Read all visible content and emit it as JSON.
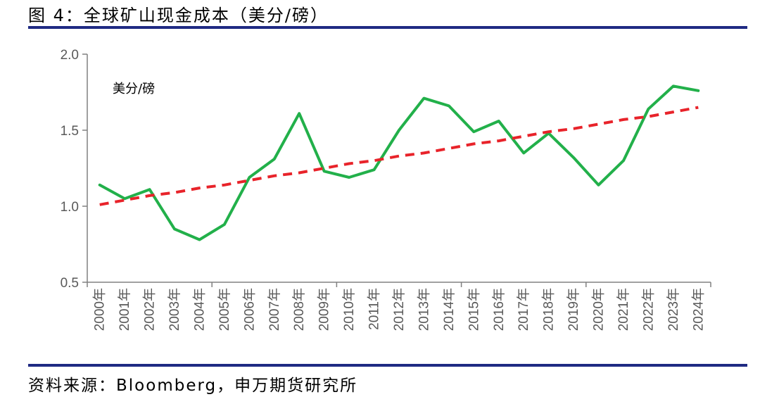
{
  "figure": {
    "title": "图 4：全球矿山现金成本（美分/磅）",
    "source": "资料来源：Bloomberg，申万期货研究所"
  },
  "colors": {
    "rule": "#1f2a83",
    "series": "#22b04a",
    "trend": "#e8232a",
    "axis": "#808080",
    "tick_label": "#595959"
  },
  "chart_data": {
    "type": "line",
    "unit_label": "美分/磅",
    "categories": [
      "2000年",
      "2001年",
      "2002年",
      "2003年",
      "2004年",
      "2005年",
      "2006年",
      "2007年",
      "2008年",
      "2009年",
      "2010年",
      "2011年",
      "2012年",
      "2013年",
      "2014年",
      "2015年",
      "2016年",
      "2017年",
      "2018年",
      "2019年",
      "2020年",
      "2021年",
      "2022年",
      "2023年",
      "2024年"
    ],
    "series": [
      {
        "style": "solid",
        "color": "#22b04a",
        "values": [
          1.14,
          1.05,
          1.11,
          0.85,
          0.78,
          0.88,
          1.19,
          1.31,
          1.61,
          1.23,
          1.19,
          1.24,
          1.5,
          1.71,
          1.66,
          1.49,
          1.56,
          1.35,
          1.48,
          1.32,
          1.14,
          1.3,
          1.64,
          1.79,
          1.76
        ]
      },
      {
        "style": "dashed",
        "color": "#e8232a",
        "trendline": "linear",
        "values": [
          1.01,
          1.04,
          1.07,
          1.09,
          1.12,
          1.14,
          1.17,
          1.2,
          1.22,
          1.25,
          1.28,
          1.3,
          1.33,
          1.35,
          1.38,
          1.41,
          1.43,
          1.46,
          1.49,
          1.51,
          1.54,
          1.57,
          1.59,
          1.62,
          1.65
        ]
      }
    ],
    "y_ticks": [
      "0.5",
      "1.0",
      "1.5",
      "2.0"
    ],
    "ylim": [
      0.5,
      2.0
    ],
    "grid": false,
    "legend": "none"
  }
}
